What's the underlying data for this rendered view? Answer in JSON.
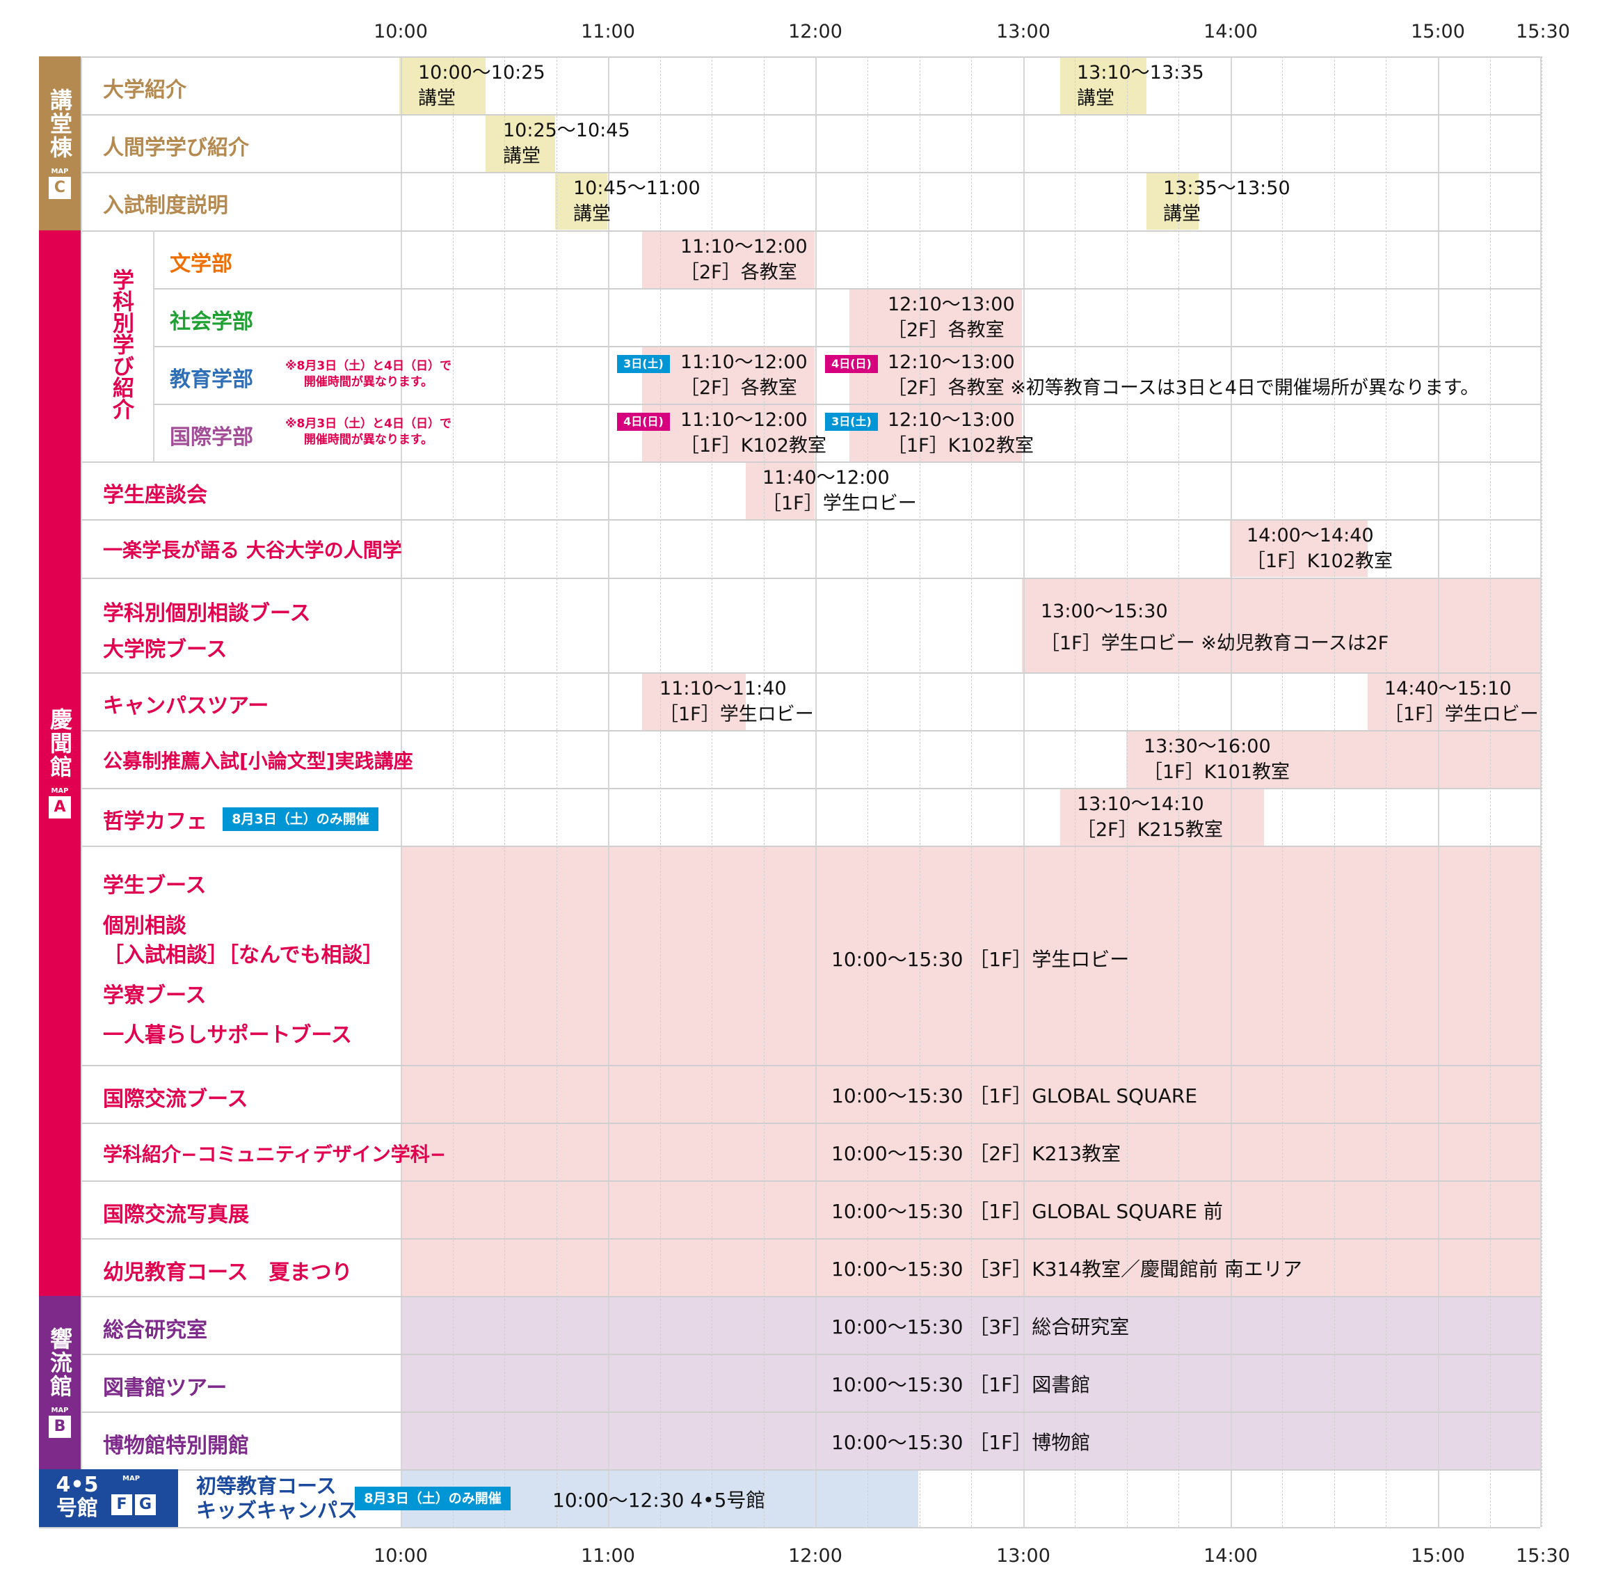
{
  "hours": [
    "10:00",
    "11:00",
    "12:00",
    "13:00",
    "14:00",
    "15:00",
    "15:30"
  ],
  "colors": {
    "kodo": "#b58a50",
    "kodo_bar": "#f1ebbb",
    "keimon": "#e0004f",
    "keimon_bar": "#f8dcdc",
    "kyoryu": "#7d2a8a",
    "kyoryu_bar": "#e7d8e8",
    "kan45": "#1c4a9c",
    "kan45_bar": "#d6e1f1",
    "tag_blue": "#0096d6",
    "tag_pink": "#d6007e",
    "bungaku": "#ee6f00",
    "shakai": "#1ea032",
    "kyoiku": "#2f6fb8",
    "kokusai": "#a34d99"
  },
  "sections": {
    "kodo": {
      "name": "講堂棟",
      "map": "MAP",
      "badge": "C"
    },
    "keimon": {
      "name": "慶聞館",
      "map": "MAP",
      "badge": "A"
    },
    "kyoryu": {
      "name": "響流館",
      "map": "MAP",
      "badge": "B"
    },
    "kan45": {
      "name1": "4•5",
      "name2": "号館",
      "map": "MAP",
      "badge1": "F",
      "badge2": "G"
    }
  },
  "subgroup": "学科別学び紹介",
  "rows": {
    "daigaku": "大学紹介",
    "ningen": "人間学学び紹介",
    "nyushi": "入試制度説明",
    "bungaku": "文学部",
    "shakai": "社会学部",
    "kyoiku": "教育学部",
    "kokusai": "国際学部",
    "zadankai": "学生座談会",
    "ichiraku": "一楽学長が語る 大谷大学の人間学",
    "booth1": "学科別個別相談ブース",
    "booth2": "大学院ブース",
    "tour": "キャンパスツアー",
    "koubo": "公募制推薦入試[小論文型]実践講座",
    "tetsugaku": "哲学カフェ",
    "big1": "学生ブース",
    "big2": "個別相談",
    "big3": "［入試相談］［なんでも相談］",
    "big4": "学寮ブース",
    "big5": "一人暮らしサポートブース",
    "kokusai_booth": "国際交流ブース",
    "community": "学科紹介−コミュニティデザイン学科−",
    "photo": "国際交流写真展",
    "natsu": "幼児教育コース　夏まつり",
    "soken": "総合研究室",
    "library": "図書館ツアー",
    "museum": "博物館特別開館",
    "kids1": "初等教育コース",
    "kids2": "キッズキャンパス"
  },
  "notes": {
    "date_diff_1": "※8月3日（土）と4日（日）で",
    "date_diff_2": "開催時間が異なります。",
    "only_sat": "8月3日（土）のみ開催"
  },
  "tags": {
    "sat": "3日(土)",
    "sun": "4日(日)"
  },
  "events": {
    "e1": "10:00〜10:25",
    "e1p": "講堂",
    "e2": "13:10〜13:35",
    "e2p": "講堂",
    "e3": "10:25〜10:45",
    "e3p": "講堂",
    "e4": "10:45〜11:00",
    "e4p": "講堂",
    "e5": "13:35〜13:50",
    "e5p": "講堂",
    "e6": "11:10〜12:00",
    "e6p": "［2F］各教室",
    "e7": "12:10〜13:00",
    "e7p": "［2F］各教室",
    "e8": "11:10〜12:00",
    "e8p": "［2F］各教室",
    "e9": "12:10〜13:00",
    "e9p": "［2F］各教室 ※初等教育コースは3日と4日で開催場所が異なります。",
    "e10": "11:10〜12:00",
    "e10p": "［1F］K102教室",
    "e11": "12:10〜13:00",
    "e11p": "［1F］K102教室",
    "e12": "11:40〜12:00",
    "e12p": "［1F］学生ロビー",
    "e13": "14:00〜14:40",
    "e13p": "［1F］K102教室",
    "e14": "13:00〜15:30",
    "e14p": "［1F］学生ロビー ※幼児教育コースは2F",
    "e15": "11:10〜11:40",
    "e15p": "［1F］学生ロビー",
    "e16": "14:40〜15:10",
    "e16p": "［1F］学生ロビー",
    "e17": "13:30〜16:00",
    "e17p": "［1F］K101教室",
    "e18": "13:10〜14:10",
    "e18p": "［2F］K215教室",
    "f1": "10:00〜15:30 ［1F］学生ロビー",
    "f2": "10:00〜15:30 ［1F］GLOBAL SQUARE",
    "f3": "10:00〜15:30 ［2F］K213教室",
    "f4": "10:00〜15:30 ［1F］GLOBAL SQUARE 前",
    "f5": "10:00〜15:30 ［3F］K314教室／慶聞館前 南エリア",
    "f6": "10:00〜15:30 ［3F］総合研究室",
    "f7": "10:00〜15:30 ［1F］図書館",
    "f8": "10:00〜15:30 ［1F］博物館",
    "f9": "10:00〜12:30 4•5号館"
  }
}
